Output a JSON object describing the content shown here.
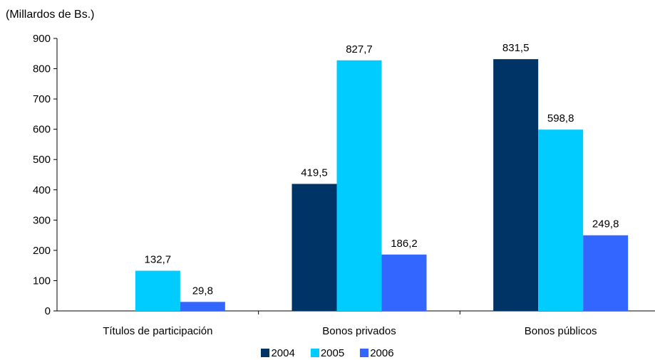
{
  "chart_data": {
    "type": "bar",
    "ylabel": "(Millardos de Bs.)",
    "categories": [
      "Títulos de participación",
      "Bonos privados",
      "Bonos públicos"
    ],
    "series": [
      {
        "name": "2004",
        "color": "#003366",
        "values": [
          null,
          419.5,
          831.5
        ],
        "labels": [
          "",
          "419,5",
          "831,5"
        ]
      },
      {
        "name": "2005",
        "color": "#00CCFF",
        "values": [
          132.7,
          827.7,
          598.8
        ],
        "labels": [
          "132,7",
          "827,7",
          "598,8"
        ]
      },
      {
        "name": "2006",
        "color": "#3366FF",
        "values": [
          29.8,
          186.2,
          249.8
        ],
        "labels": [
          "29,8",
          "186,2",
          "249,8"
        ]
      }
    ],
    "ylim": [
      0,
      900
    ],
    "yticks": [
      0,
      100,
      200,
      300,
      400,
      500,
      600,
      700,
      800,
      900
    ],
    "grid": false,
    "legend": "bottom"
  }
}
